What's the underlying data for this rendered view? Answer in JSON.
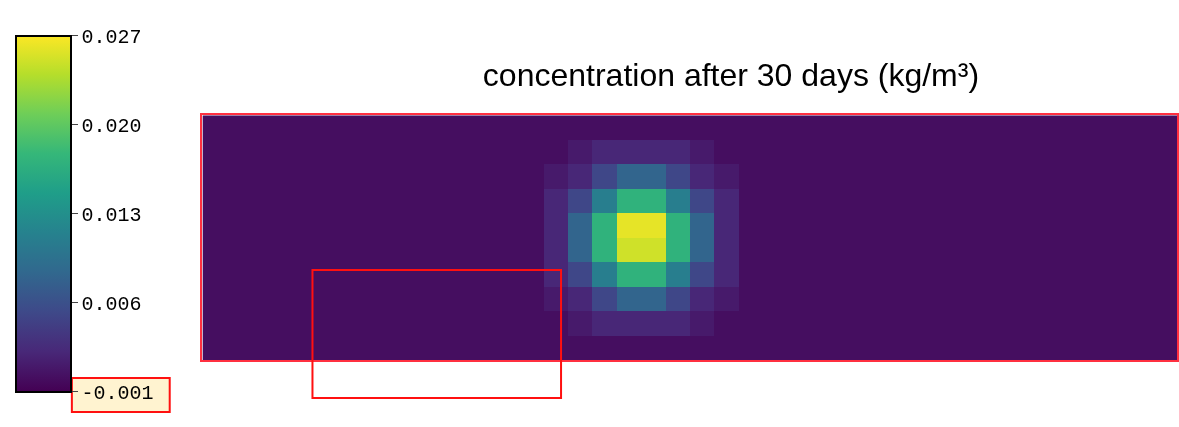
{
  "chart_data": {
    "type": "heatmap",
    "title": "concentration after 30 days (kg/m³)",
    "categories": [
      null,
      null,
      null,
      null,
      null,
      null,
      null,
      null,
      null,
      null,
      null,
      null,
      null,
      null,
      null,
      null,
      null,
      null,
      null,
      null,
      null,
      null,
      null,
      null,
      null,
      null,
      null,
      null,
      null,
      null,
      null,
      null,
      null,
      null,
      null,
      null,
      null,
      null,
      null,
      null
    ],
    "y_categories": [
      null,
      null,
      null,
      null,
      null,
      null,
      null,
      null,
      null,
      null
    ],
    "cells": [
      [
        0,
        0,
        0,
        0,
        0,
        0,
        0,
        0,
        0,
        0,
        0,
        0,
        0,
        0,
        0,
        0,
        0,
        0,
        0,
        0,
        0,
        0,
        0,
        0,
        0,
        0,
        0,
        0,
        0,
        0,
        0,
        0,
        0,
        0,
        0,
        0,
        0,
        0,
        0,
        0
      ],
      [
        0,
        0,
        0,
        0,
        0,
        0,
        0,
        0,
        0,
        0,
        0,
        0,
        0,
        0,
        0,
        0.001,
        0.002,
        0.002,
        0.002,
        0.002,
        0.001,
        0,
        0,
        0,
        0,
        0,
        0,
        0,
        0,
        0,
        0,
        0,
        0,
        0,
        0,
        0,
        0,
        0,
        0,
        0
      ],
      [
        0,
        0,
        0,
        0,
        0,
        0,
        0,
        0,
        0,
        0,
        0,
        0,
        0,
        0,
        0.001,
        0.002,
        0.005,
        0.008,
        0.008,
        0.005,
        0.002,
        0.001,
        0,
        0,
        0,
        0,
        0,
        0,
        0,
        0,
        0,
        0,
        0,
        0,
        0,
        0,
        0,
        0,
        0,
        0
      ],
      [
        0,
        0,
        0,
        0,
        0,
        0,
        0,
        0,
        0,
        0,
        0,
        0,
        0,
        0,
        0.002,
        0.005,
        0.011,
        0.017,
        0.017,
        0.011,
        0.005,
        0.002,
        0,
        0,
        0,
        0,
        0,
        0,
        0,
        0,
        0,
        0,
        0,
        0,
        0,
        0,
        0,
        0,
        0,
        0
      ],
      [
        0,
        0,
        0,
        0,
        0,
        0,
        0,
        0,
        0,
        0,
        0,
        0,
        0,
        0,
        0.002,
        0.008,
        0.017,
        0.026,
        0.026,
        0.017,
        0.008,
        0.002,
        0,
        0,
        0,
        0,
        0,
        0,
        0,
        0,
        0,
        0,
        0,
        0,
        0,
        0,
        0,
        0,
        0,
        0
      ],
      [
        0,
        0,
        0,
        0,
        0,
        0,
        0,
        0,
        0,
        0,
        0,
        0,
        0,
        0,
        0.002,
        0.008,
        0.017,
        0.025,
        0.025,
        0.017,
        0.008,
        0.002,
        0,
        0,
        0,
        0,
        0,
        0,
        0,
        0,
        0,
        0,
        0,
        0,
        0,
        0,
        0,
        0,
        0,
        0
      ],
      [
        0,
        0,
        0,
        0,
        0,
        0,
        0,
        0,
        0,
        0,
        0,
        0,
        0,
        0,
        0.002,
        0.005,
        0.011,
        0.017,
        0.017,
        0.011,
        0.005,
        0.002,
        0,
        0,
        0,
        0,
        0,
        0,
        0,
        0,
        0,
        0,
        0,
        0,
        0,
        0,
        0,
        0,
        0,
        0
      ],
      [
        0,
        0,
        0,
        0,
        0,
        0,
        0,
        0,
        0,
        0,
        0,
        0,
        0,
        0,
        0.001,
        0.002,
        0.005,
        0.008,
        0.008,
        0.005,
        0.002,
        0.001,
        0,
        0,
        0,
        0,
        0,
        0,
        0,
        0,
        0,
        0,
        0,
        0,
        0,
        0,
        0,
        0,
        0,
        0
      ],
      [
        0,
        0,
        0,
        0,
        0,
        0,
        0,
        0,
        0,
        0,
        0,
        0,
        0,
        0,
        0,
        0.001,
        0.002,
        0.002,
        0.002,
        0.002,
        0.001,
        0,
        0,
        0,
        0,
        0,
        0,
        0,
        0,
        0,
        0,
        0,
        0,
        0,
        0,
        0,
        0,
        0,
        0,
        0
      ],
      [
        0,
        0,
        0,
        0,
        0,
        0,
        0,
        0,
        0,
        0,
        0,
        0,
        0,
        0,
        0,
        0,
        0,
        0,
        0,
        0,
        0,
        0,
        0,
        0,
        0,
        0,
        0,
        0,
        0,
        0,
        0,
        0,
        0,
        0,
        0,
        0,
        0,
        0,
        0,
        0
      ]
    ],
    "clim": [
      -0.001,
      0.027
    ],
    "cticks": [
      {
        "value": -0.001,
        "label": "-0.001"
      },
      {
        "value": 0.006,
        "label": "0.006"
      },
      {
        "value": 0.013,
        "label": "0.013"
      },
      {
        "value": 0.02,
        "label": "0.020"
      },
      {
        "value": 0.027,
        "label": "0.027"
      }
    ]
  }
}
